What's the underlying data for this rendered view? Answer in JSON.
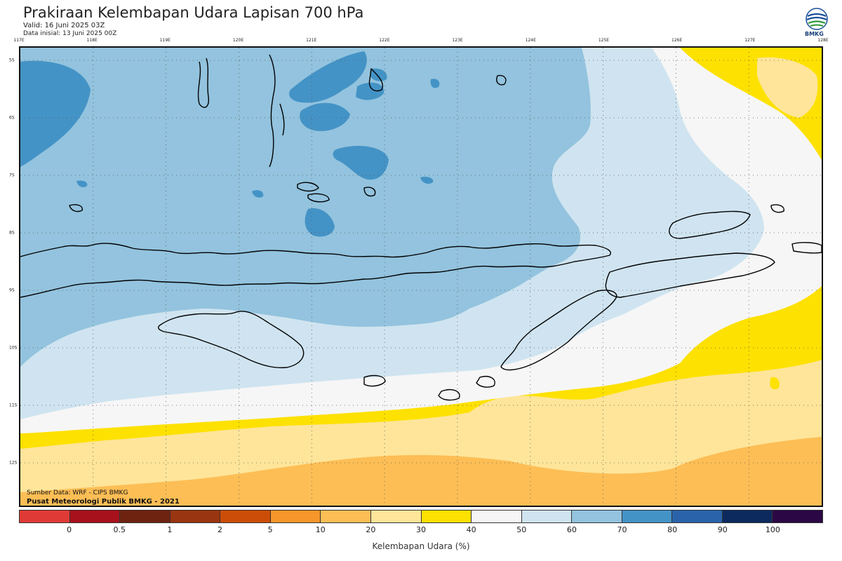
{
  "header": {
    "title": "Prakiraan Kelembapan Udara Lapisan 700 hPa",
    "valid": "Valid: 16 Juni 2025 03Z",
    "init": "Data inisial: 13 Juni 2025 00Z"
  },
  "logo": {
    "text": "BMKG",
    "icon": "bmkg-logo-icon"
  },
  "axes": {
    "lon_labels": [
      "117E",
      "118E",
      "119E",
      "120E",
      "121E",
      "122E",
      "123E",
      "124E",
      "125E",
      "126E",
      "127E",
      "128E"
    ],
    "lat_labels": [
      "5S",
      "6S",
      "7S",
      "8S",
      "9S",
      "10S",
      "11S",
      "12S"
    ]
  },
  "footer": {
    "source": "Sumber Data: WRF - CIPS BMKG",
    "credit": "Pusat Meteorologi Publik BMKG - 2021"
  },
  "colorbar": {
    "label": "Kelembapan Udara (%)",
    "ticks": [
      "0",
      "0.5",
      "1",
      "2",
      "5",
      "10",
      "20",
      "30",
      "40",
      "50",
      "60",
      "70",
      "80",
      "90",
      "100"
    ],
    "colors": [
      "#e03a36",
      "#a8101b",
      "#6e2310",
      "#993510",
      "#cc4d08",
      "#f7962a",
      "#fdbe55",
      "#fee59a",
      "#fde100",
      "#f6f6f6",
      "#cfe4f0",
      "#93c3de",
      "#4493c6",
      "#2a63aa",
      "#0c2a5e",
      "#2b0845"
    ]
  },
  "legend_colors": {
    "c20": "#fdbe55",
    "c30": "#fee59a",
    "c40": "#fde100",
    "c50": "#f6f6f6",
    "c60": "#cfe4f0",
    "c70": "#93c3de",
    "c80": "#4493c6"
  }
}
